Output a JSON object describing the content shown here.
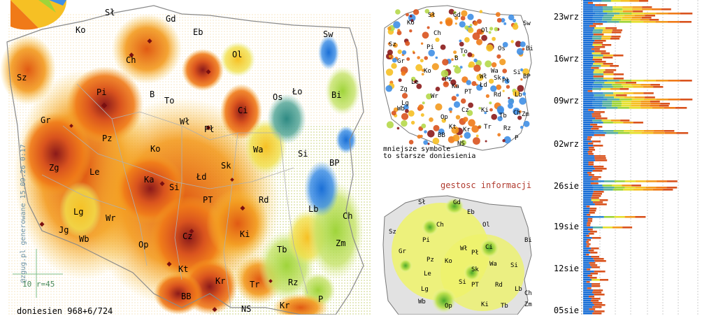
{
  "main_map": {
    "regions": [
      "Sł",
      "Gd",
      "Ko",
      "Eb",
      "Ol",
      "Sz",
      "Ch",
      "Sw",
      "Pi",
      "Os",
      "Ło",
      "Bi",
      "B",
      "To",
      "Ci",
      "Gr",
      "Wł",
      "Pł",
      "Pz",
      "Ko",
      "Wa",
      "Si",
      "Zg",
      "Le",
      "Ka",
      "Łd",
      "Sk",
      "BP",
      "Si",
      "PT",
      "Rd",
      "Lg",
      "Wr",
      "Ki",
      "Lb",
      "Jg",
      "Wb",
      "Ch",
      "Op",
      "Cz",
      "Zm",
      "Tb",
      "Kt",
      "Rz",
      "Kr",
      "Tr",
      "BB",
      "NS",
      "Kr",
      "P"
    ],
    "bottom_label": "doniesien 968+6/724",
    "vertical_label": "@zgug.pl generowane 15.09.26 0:17",
    "scale_label": "10 r=45"
  },
  "small_top": {
    "regions": [
      "Gd",
      "Sł",
      "Ko",
      "Ch",
      "Ol",
      "Sw",
      "Pi",
      "Sz",
      "Os",
      "Bi",
      "To",
      "Gr",
      "B",
      "Ko",
      "Wa",
      "BP",
      "Le",
      "Pz",
      "Wł",
      "Pł",
      "Si",
      "Zg",
      "Ka",
      "Łd",
      "Sk",
      "Lg",
      "PT",
      "Rd",
      "Lb",
      "Wr",
      "Cz",
      "Wb",
      "Ch",
      "Op",
      "Ki",
      "Tb",
      "Zm",
      "Kt",
      "Kr",
      "Tr",
      "Rz",
      "BB",
      "NS",
      "P"
    ],
    "note_line1": "mniejsze symbole",
    "note_line2": "to starsze doniesienia"
  },
  "small_bottom": {
    "title": "gestosc informacji",
    "regions": [
      "Sł",
      "Gd",
      "Eb",
      "Sz",
      "Ch",
      "Ol",
      "Pi",
      "Bi",
      "Gr",
      "Wł",
      "Ci",
      "Pł",
      "Pz",
      "Ko",
      "Wa",
      "Le",
      "Sk",
      "Si",
      "Lg",
      "Si",
      "PT",
      "Rd",
      "Lb",
      "Wb",
      "Op",
      "Ki",
      "Ch",
      "Tb",
      "Zm"
    ]
  },
  "timeline": {
    "labels": [
      "23wrz",
      "16wrz",
      "09wrz",
      "02wrz",
      "26sie",
      "19sie",
      "12sie",
      "05sie"
    ]
  }
}
